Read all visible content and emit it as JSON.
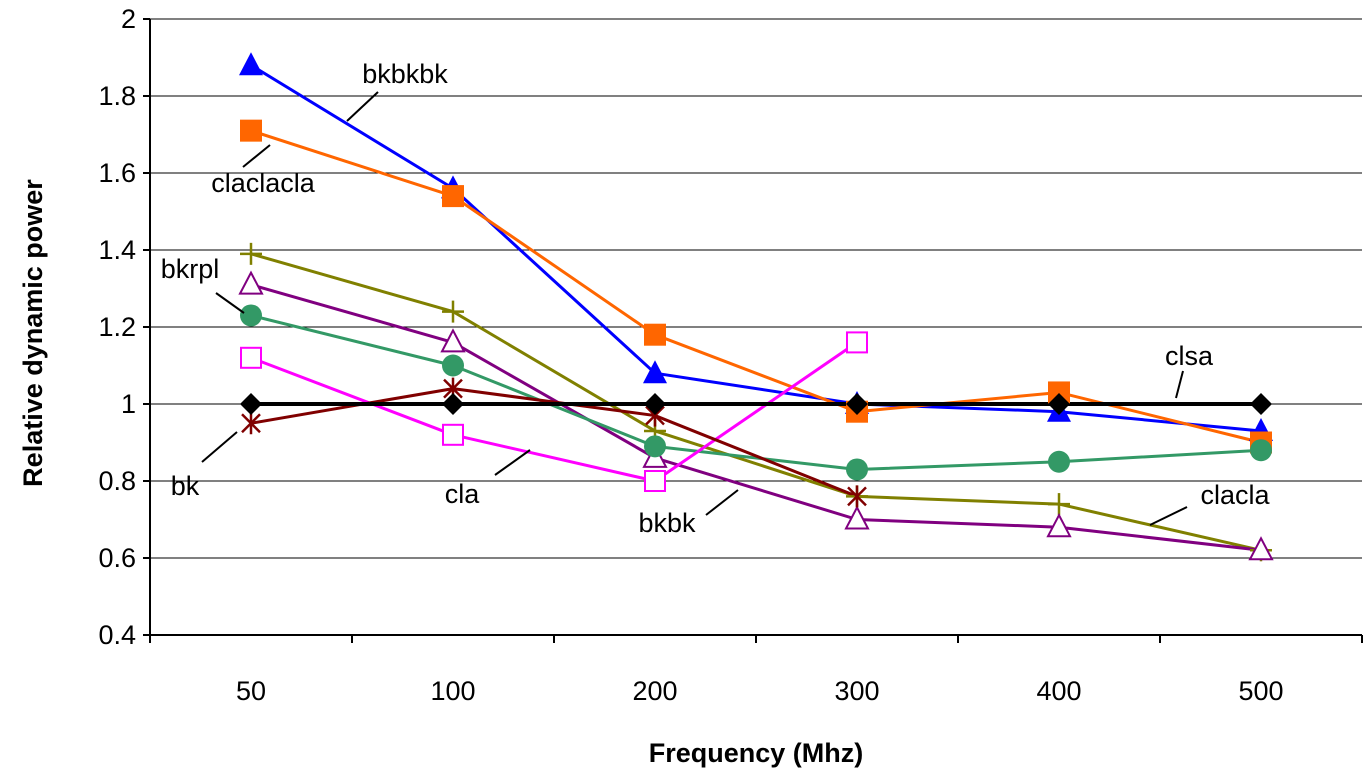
{
  "chart_data": {
    "type": "line",
    "title": "",
    "xlabel": "Frequency (Mhz)",
    "ylabel": "Relative dynamic power",
    "categories": [
      "50",
      "100",
      "200",
      "300",
      "400",
      "500"
    ],
    "ylim": [
      0.4,
      2
    ],
    "yticks": [
      "0.4",
      "0.6",
      "0.8",
      "1",
      "1.2",
      "1.4",
      "1.6",
      "1.8",
      "2"
    ],
    "grid": "horizontal",
    "legend": "none (series labeled inline)",
    "series": [
      {
        "name": "bkbkbk",
        "color": "#0000FF",
        "marker": "triangle-filled",
        "values": [
          1.88,
          1.56,
          1.08,
          1.0,
          0.98,
          0.93
        ]
      },
      {
        "name": "claclacla",
        "color": "#FF6600",
        "marker": "square-filled",
        "values": [
          1.71,
          1.54,
          1.18,
          0.98,
          1.03,
          0.9
        ]
      },
      {
        "name": "clacla",
        "color": "#808000",
        "marker": "plus",
        "values": [
          1.39,
          1.24,
          0.93,
          0.76,
          0.74,
          0.62
        ]
      },
      {
        "name": "bkbk",
        "color": "#800080",
        "marker": "triangle-open",
        "values": [
          1.31,
          1.16,
          0.86,
          0.7,
          0.68,
          0.62
        ]
      },
      {
        "name": "bkrpl",
        "color": "#339966",
        "marker": "circle-filled",
        "values": [
          1.23,
          1.1,
          0.89,
          0.83,
          0.85,
          0.88
        ]
      },
      {
        "name": "cla",
        "color": "#FF00FF",
        "marker": "square-open",
        "values": [
          1.12,
          0.92,
          0.8,
          1.16,
          null,
          null
        ]
      },
      {
        "name": "bk",
        "color": "#800000",
        "marker": "star",
        "values": [
          0.95,
          1.04,
          0.97,
          0.76,
          null,
          null
        ]
      },
      {
        "name": "clsa",
        "color": "#000000",
        "marker": "diamond-filled",
        "values": [
          1.0,
          1.0,
          1.0,
          1.0,
          1.0,
          1.0
        ]
      }
    ]
  }
}
